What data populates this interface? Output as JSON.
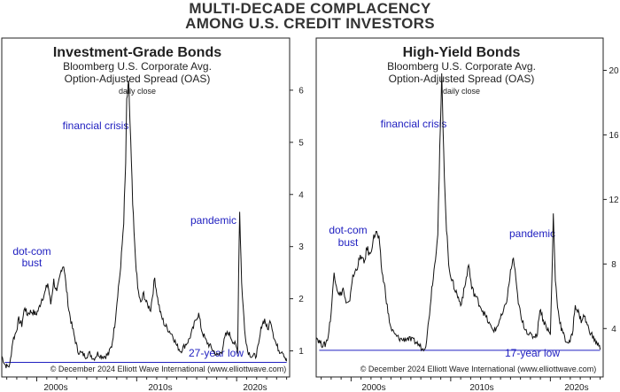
{
  "title_line1": "MULTI-DECADE COMPLACENCY",
  "title_line2": "AMONG U.S. CREDIT INVESTORS",
  "chart_data": [
    {
      "type": "line",
      "title": "Investment-Grade Bonds",
      "subtitle_line1": "Bloomberg U.S. Corporate Avg.",
      "subtitle_line2": "Option-Adjusted Spread (OAS)",
      "note": "daily close",
      "x_tick_labels": [
        "2000s",
        "2010s",
        "2020s"
      ],
      "xlim": [
        1996.5,
        2025.3
      ],
      "ylim": [
        0.5,
        7.0
      ],
      "yticks": [
        1,
        2,
        3,
        4,
        5,
        6
      ],
      "series": [
        {
          "x": [
            1996.5,
            1996.8,
            1997.0,
            1997.3,
            1997.6,
            1997.9,
            1998.2,
            1998.5,
            1998.8,
            1999.0,
            1999.3,
            1999.6,
            1999.9,
            2000.2,
            2000.5,
            2000.8,
            2001.1,
            2001.4,
            2001.7,
            2002.0,
            2002.3,
            2002.5,
            2002.7,
            2002.9,
            2003.2,
            2003.5,
            2003.8,
            2004.1,
            2004.5,
            2004.9,
            2005.3,
            2005.7,
            2006.1,
            2006.5,
            2006.9,
            2007.2,
            2007.5,
            2007.8,
            2008.1,
            2008.4,
            2008.7,
            2008.9,
            2009.0,
            2009.2,
            2009.4,
            2009.6,
            2009.8,
            2010.1,
            2010.4,
            2010.7,
            2011.0,
            2011.4,
            2011.8,
            2012.1,
            2012.4,
            2012.8,
            2013.2,
            2013.6,
            2014.0,
            2014.4,
            2014.8,
            2015.2,
            2015.6,
            2016.0,
            2016.2,
            2016.5,
            2016.9,
            2017.3,
            2017.7,
            2018.1,
            2018.5,
            2018.9,
            2019.2,
            2019.6,
            2019.9,
            2020.1,
            2020.2,
            2020.3,
            2020.5,
            2020.8,
            2021.1,
            2021.5,
            2021.9,
            2022.2,
            2022.5,
            2022.8,
            2023.1,
            2023.4,
            2023.7,
            2024.0,
            2024.3,
            2024.6,
            2024.9,
            2025.0
          ],
          "y": [
            0.9,
            0.75,
            0.7,
            0.72,
            1.2,
            1.35,
            1.6,
            1.5,
            1.85,
            1.7,
            1.75,
            1.75,
            1.7,
            1.8,
            2.0,
            2.1,
            2.3,
            1.9,
            2.35,
            2.1,
            2.4,
            2.6,
            2.65,
            2.3,
            1.8,
            1.5,
            1.25,
            1.0,
            0.95,
            0.9,
            0.95,
            0.85,
            0.95,
            0.9,
            0.9,
            0.95,
            1.1,
            1.5,
            2.1,
            2.6,
            3.5,
            4.6,
            5.8,
            6.1,
            5.0,
            3.8,
            3.0,
            2.2,
            1.9,
            2.1,
            1.9,
            1.8,
            2.4,
            2.0,
            1.7,
            1.5,
            1.4,
            1.3,
            1.1,
            1.0,
            1.1,
            1.2,
            1.4,
            1.65,
            1.7,
            1.4,
            1.2,
            1.1,
            1.0,
            0.9,
            1.0,
            1.3,
            1.35,
            1.2,
            1.1,
            1.0,
            2.5,
            3.7,
            2.3,
            1.4,
            1.0,
            0.9,
            0.9,
            1.1,
            1.5,
            1.6,
            1.4,
            1.6,
            1.3,
            1.1,
            1.0,
            1.0,
            0.85,
            0.8
          ]
        }
      ],
      "baseline_value": 0.78,
      "annotations": [
        "dot-com",
        "bust",
        "financial crisis",
        "pandemic",
        "27-year low"
      ],
      "copyright": "© December 2024 Elliott Wave International (www.elliottwave.com)"
    },
    {
      "type": "line",
      "title": "High-Yield Bonds",
      "subtitle_line1": "Bloomberg U.S. Corporate Avg.",
      "subtitle_line2": "Option-Adjusted Spread (OAS)",
      "note": "daily close",
      "x_tick_labels": [
        "2000s",
        "2010s",
        "2020s"
      ],
      "xlim": [
        1996.5,
        2025.3
      ],
      "ylim": [
        1.0,
        22.0
      ],
      "yticks": [
        4,
        8,
        12,
        16,
        20
      ],
      "series": [
        {
          "x": [
            1996.5,
            1996.8,
            1997.1,
            1997.4,
            1997.7,
            1998.0,
            1998.3,
            1998.6,
            1998.9,
            1999.2,
            1999.5,
            1999.8,
            2000.1,
            2000.4,
            2000.7,
            2001.0,
            2001.3,
            2001.6,
            2001.9,
            2002.2,
            2002.5,
            2002.8,
            2003.1,
            2003.4,
            2003.7,
            2004.0,
            2004.4,
            2004.8,
            2005.2,
            2005.6,
            2006.0,
            2006.4,
            2006.8,
            2007.2,
            2007.5,
            2007.8,
            2008.1,
            2008.4,
            2008.7,
            2008.9,
            2009.1,
            2009.3,
            2009.5,
            2009.8,
            2010.1,
            2010.4,
            2010.7,
            2011.0,
            2011.4,
            2011.8,
            2012.1,
            2012.5,
            2012.9,
            2013.3,
            2013.7,
            2014.1,
            2014.5,
            2014.9,
            2015.3,
            2015.7,
            2016.0,
            2016.3,
            2016.7,
            2017.1,
            2017.5,
            2017.9,
            2018.3,
            2018.7,
            2018.95,
            2019.3,
            2019.7,
            2020.0,
            2020.15,
            2020.3,
            2020.5,
            2020.8,
            2021.1,
            2021.5,
            2021.9,
            2022.2,
            2022.5,
            2022.8,
            2023.1,
            2023.4,
            2023.7,
            2024.0,
            2024.4,
            2024.8,
            2025.0
          ],
          "y": [
            3.5,
            3.2,
            3.0,
            3.0,
            3.5,
            5.0,
            7.5,
            6.5,
            6.0,
            6.5,
            5.5,
            5.5,
            7.0,
            7.5,
            8.0,
            8.5,
            8.0,
            9.0,
            8.5,
            9.5,
            10.0,
            9.5,
            7.5,
            6.5,
            5.0,
            4.0,
            3.6,
            3.4,
            3.3,
            3.4,
            3.3,
            3.2,
            3.0,
            2.7,
            3.0,
            4.5,
            6.5,
            8.0,
            10.0,
            15.0,
            19.5,
            15.0,
            11.0,
            8.0,
            7.0,
            6.5,
            6.0,
            5.5,
            6.5,
            8.0,
            6.5,
            6.0,
            5.5,
            5.0,
            4.5,
            4.0,
            3.9,
            4.5,
            5.0,
            6.0,
            7.5,
            8.4,
            6.0,
            4.5,
            4.0,
            3.6,
            3.5,
            3.7,
            5.3,
            4.5,
            4.0,
            3.6,
            7.0,
            11.0,
            7.0,
            5.0,
            4.0,
            3.3,
            3.1,
            3.6,
            5.5,
            5.0,
            4.5,
            4.8,
            4.2,
            3.8,
            3.3,
            3.0,
            2.7
          ]
        }
      ],
      "baseline_value": 2.65,
      "annotations": [
        "dot-com",
        "bust",
        "financial crisis",
        "pandemic",
        "17-year low"
      ],
      "copyright": "© December 2024 Elliott Wave International (www.elliottwave.com)"
    }
  ],
  "colors": {
    "line": "#111111",
    "annotation": "#2020c0",
    "baseline": "#2020c0"
  }
}
